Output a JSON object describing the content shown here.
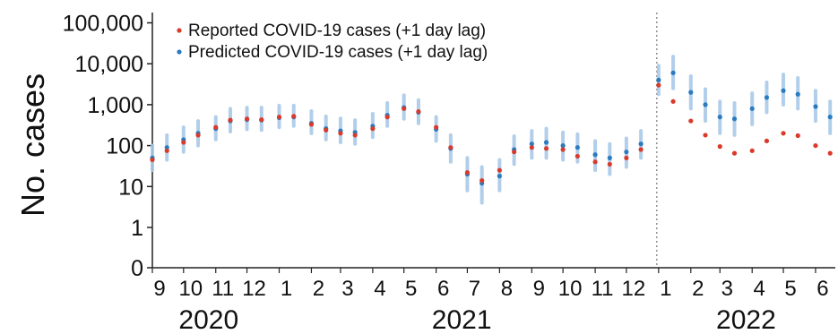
{
  "chart_data": {
    "type": "scatter",
    "title": "",
    "xlabel": "",
    "ylabel": "No. cases",
    "y_scale": "log",
    "ylim": [
      0,
      100000
    ],
    "y_ticks": [
      {
        "value": 100000,
        "label": "100,000"
      },
      {
        "value": 10000,
        "label": "10,000"
      },
      {
        "value": 1000,
        "label": "1,000"
      },
      {
        "value": 100,
        "label": "100"
      },
      {
        "value": 10,
        "label": "10"
      },
      {
        "value": 1,
        "label": "1"
      },
      {
        "value": 0,
        "label": "0"
      }
    ],
    "x_month_ticks": [
      "9",
      "10",
      "11",
      "12",
      "1",
      "2",
      "3",
      "4",
      "5",
      "6",
      "7",
      "8",
      "9",
      "10",
      "11",
      "12",
      "1",
      "2",
      "3",
      "4",
      "5",
      "6"
    ],
    "x_year_labels": [
      {
        "label": "2020",
        "first_month_index": 0,
        "last_month_index": 3
      },
      {
        "label": "2021",
        "first_month_index": 4,
        "last_month_index": 15
      },
      {
        "label": "2022",
        "first_month_index": 16,
        "last_month_index": 21
      }
    ],
    "xlim": [
      "2020-09-01",
      "2022-06-20"
    ],
    "reference_line": {
      "date": "2022-01-01",
      "style": "dotted"
    },
    "grid": false,
    "legend_position": "top-left",
    "series": [
      {
        "name": "Reported COVID-19 cases (+1 day lag)",
        "color": "#d93a2b",
        "marker": "point",
        "x": [
          "2020-09-01",
          "2020-09-15",
          "2020-10-01",
          "2020-10-15",
          "2020-11-01",
          "2020-11-15",
          "2020-12-01",
          "2020-12-15",
          "2021-01-01",
          "2021-01-15",
          "2021-02-01",
          "2021-02-15",
          "2021-03-01",
          "2021-03-15",
          "2021-04-01",
          "2021-04-15",
          "2021-05-01",
          "2021-05-15",
          "2021-06-01",
          "2021-06-15",
          "2021-07-01",
          "2021-07-15",
          "2021-08-01",
          "2021-08-15",
          "2021-09-01",
          "2021-09-15",
          "2021-10-01",
          "2021-10-15",
          "2021-11-01",
          "2021-11-15",
          "2021-12-01",
          "2021-12-15",
          "2022-01-01",
          "2022-01-15",
          "2022-02-01",
          "2022-02-15",
          "2022-03-01",
          "2022-03-15",
          "2022-04-01",
          "2022-04-15",
          "2022-05-01",
          "2022-05-15",
          "2022-06-01",
          "2022-06-15"
        ],
        "y": [
          45,
          75,
          120,
          180,
          280,
          420,
          450,
          430,
          500,
          520,
          330,
          240,
          200,
          180,
          260,
          500,
          800,
          680,
          280,
          90,
          22,
          14,
          25,
          70,
          90,
          85,
          80,
          55,
          40,
          35,
          50,
          80,
          3000,
          1200,
          400,
          180,
          95,
          65,
          75,
          130,
          200,
          175,
          100,
          65
        ]
      },
      {
        "name": "Predicted COVID-19 cases (+1 day lag)",
        "color": "#2a7bbf",
        "marker": "point",
        "error_bars": true,
        "error_bar_color": "#a9c9e8",
        "x": [
          "2020-09-01",
          "2020-09-15",
          "2020-10-01",
          "2020-10-15",
          "2020-11-01",
          "2020-11-15",
          "2020-12-01",
          "2020-12-15",
          "2021-01-01",
          "2021-01-15",
          "2021-02-01",
          "2021-02-15",
          "2021-03-01",
          "2021-03-15",
          "2021-04-01",
          "2021-04-15",
          "2021-05-01",
          "2021-05-15",
          "2021-06-01",
          "2021-06-15",
          "2021-07-01",
          "2021-07-15",
          "2021-08-01",
          "2021-08-15",
          "2021-09-01",
          "2021-09-15",
          "2021-10-01",
          "2021-10-15",
          "2021-11-01",
          "2021-11-15",
          "2021-12-01",
          "2021-12-15",
          "2022-01-01",
          "2022-01-15",
          "2022-02-01",
          "2022-02-15",
          "2022-03-01",
          "2022-03-15",
          "2022-04-01",
          "2022-04-15",
          "2022-05-01",
          "2022-05-15",
          "2022-06-01",
          "2022-06-15"
        ],
        "y": [
          50,
          90,
          140,
          200,
          260,
          400,
          430,
          420,
          480,
          500,
          350,
          260,
          230,
          210,
          300,
          550,
          850,
          650,
          250,
          85,
          20,
          12,
          18,
          80,
          110,
          120,
          100,
          90,
          60,
          50,
          70,
          110,
          4000,
          6000,
          2000,
          1000,
          500,
          450,
          800,
          1500,
          2200,
          1800,
          900,
          500
        ],
        "y_low": [
          25,
          45,
          70,
          100,
          140,
          220,
          250,
          240,
          280,
          300,
          200,
          140,
          120,
          110,
          160,
          300,
          450,
          350,
          130,
          40,
          8,
          4,
          8,
          35,
          50,
          50,
          45,
          40,
          25,
          20,
          30,
          50,
          1800,
          2500,
          800,
          400,
          200,
          180,
          330,
          650,
          1000,
          800,
          400,
          200
        ],
        "y_high": [
          100,
          180,
          280,
          400,
          500,
          800,
          850,
          850,
          950,
          950,
          700,
          520,
          460,
          420,
          600,
          1100,
          1700,
          1300,
          500,
          180,
          50,
          30,
          45,
          170,
          230,
          260,
          210,
          190,
          130,
          110,
          150,
          230,
          9000,
          15000,
          5000,
          2400,
          1200,
          1100,
          1900,
          3500,
          5500,
          4500,
          2200,
          1200
        ]
      }
    ]
  }
}
